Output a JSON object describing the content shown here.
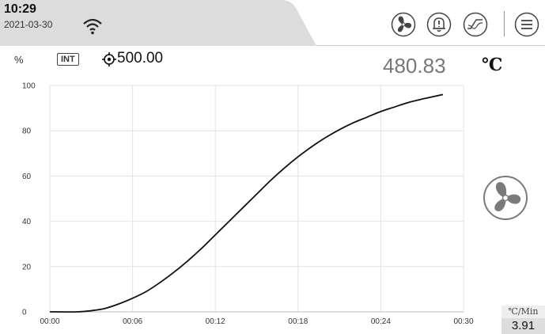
{
  "status": {
    "time": "10:29",
    "date": "2021-03-30"
  },
  "toolbar": {
    "icons": [
      "fan-icon",
      "alarm-bell-icon",
      "curve-settings-icon",
      "menu-icon"
    ]
  },
  "display": {
    "percent_label": "%",
    "control_mode": "INT",
    "setpoint": "500.00",
    "current_temp": "480.83",
    "temp_unit": "℃"
  },
  "rate": {
    "unit": "℃/Min",
    "value": "3.91"
  },
  "colors": {
    "curve": "#111111",
    "grid": "#e3e3e3",
    "header_tab": "#dcdcdc",
    "fan_fill": "#7a7a7a"
  },
  "chart_data": {
    "type": "line",
    "x_unit": "time",
    "x_ticks": [
      "00:00",
      "00:06",
      "00:12",
      "00:18",
      "00:24",
      "00:30"
    ],
    "y_ticks": [
      "0",
      "20",
      "40",
      "60",
      "80",
      "100"
    ],
    "xlim": [
      0,
      30
    ],
    "ylim": [
      0,
      100
    ],
    "grid": true,
    "series": [
      {
        "x": [
          0,
          2,
          3,
          4,
          5,
          6,
          7,
          8,
          9,
          10,
          11,
          12,
          13,
          14,
          15,
          16,
          17,
          18,
          19,
          20,
          21,
          22,
          23,
          24,
          25,
          26,
          27,
          28.5
        ],
        "values": [
          0,
          0,
          0.5,
          1.5,
          3.5,
          6,
          9,
          13,
          17.5,
          22.5,
          28,
          34,
          40,
          46,
          52,
          58,
          63.5,
          68.5,
          73,
          77,
          80.5,
          83.5,
          86,
          88.5,
          90.5,
          92.5,
          94,
          96
        ]
      }
    ]
  }
}
